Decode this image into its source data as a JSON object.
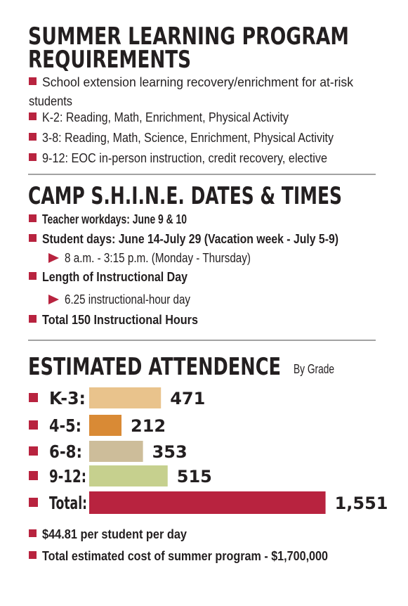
{
  "requirements": {
    "title": [
      "SUMMER LEARNING PROGRAM",
      "REQUIREMENTS"
    ],
    "items": [
      [
        "School extension learning recovery/enrichment for at-risk",
        "students"
      ],
      [
        "K-2: Reading, Math, Enrichment, Physical Activity"
      ],
      [
        "3-8: Reading, Math, Science, Enrichment, Physical Activity"
      ],
      [
        "9-12: EOC in-person instruction, credit recovery, elective"
      ]
    ]
  },
  "dates": {
    "title": "CAMP S.H.I.N.E. DATES & TIMES",
    "items": [
      {
        "text": "Teacher workdays: June 9 & 10"
      },
      {
        "text": "Student days: June 14-July 29 (Vacation week - July 5-9)",
        "sub": "8 a.m. - 3:15 p.m. (Monday - Thursday)"
      },
      {
        "text": "Length of Instructional Day",
        "sub": "6.25 instructional-hour day"
      },
      {
        "text": "Total 150 Instructional Hours"
      }
    ]
  },
  "chart_data": {
    "type": "bar",
    "orientation": "horizontal",
    "title": "ESTIMATED ATTENDENCE",
    "subtitle": "By Grade",
    "categories": [
      "K-3:",
      "4-5:",
      "6-8:",
      "9-12:",
      "Total:"
    ],
    "values": [
      471,
      212,
      353,
      515,
      1551
    ],
    "value_labels": [
      "471",
      "212",
      "353",
      "515",
      "1,551"
    ],
    "colors": [
      "#e9c38c",
      "#d98a35",
      "#cdbd9a",
      "#c6d08e",
      "#b8233f"
    ]
  },
  "notes": [
    "$44.81 per student per day",
    "Total estimated cost of summer program - $1,700,000"
  ]
}
